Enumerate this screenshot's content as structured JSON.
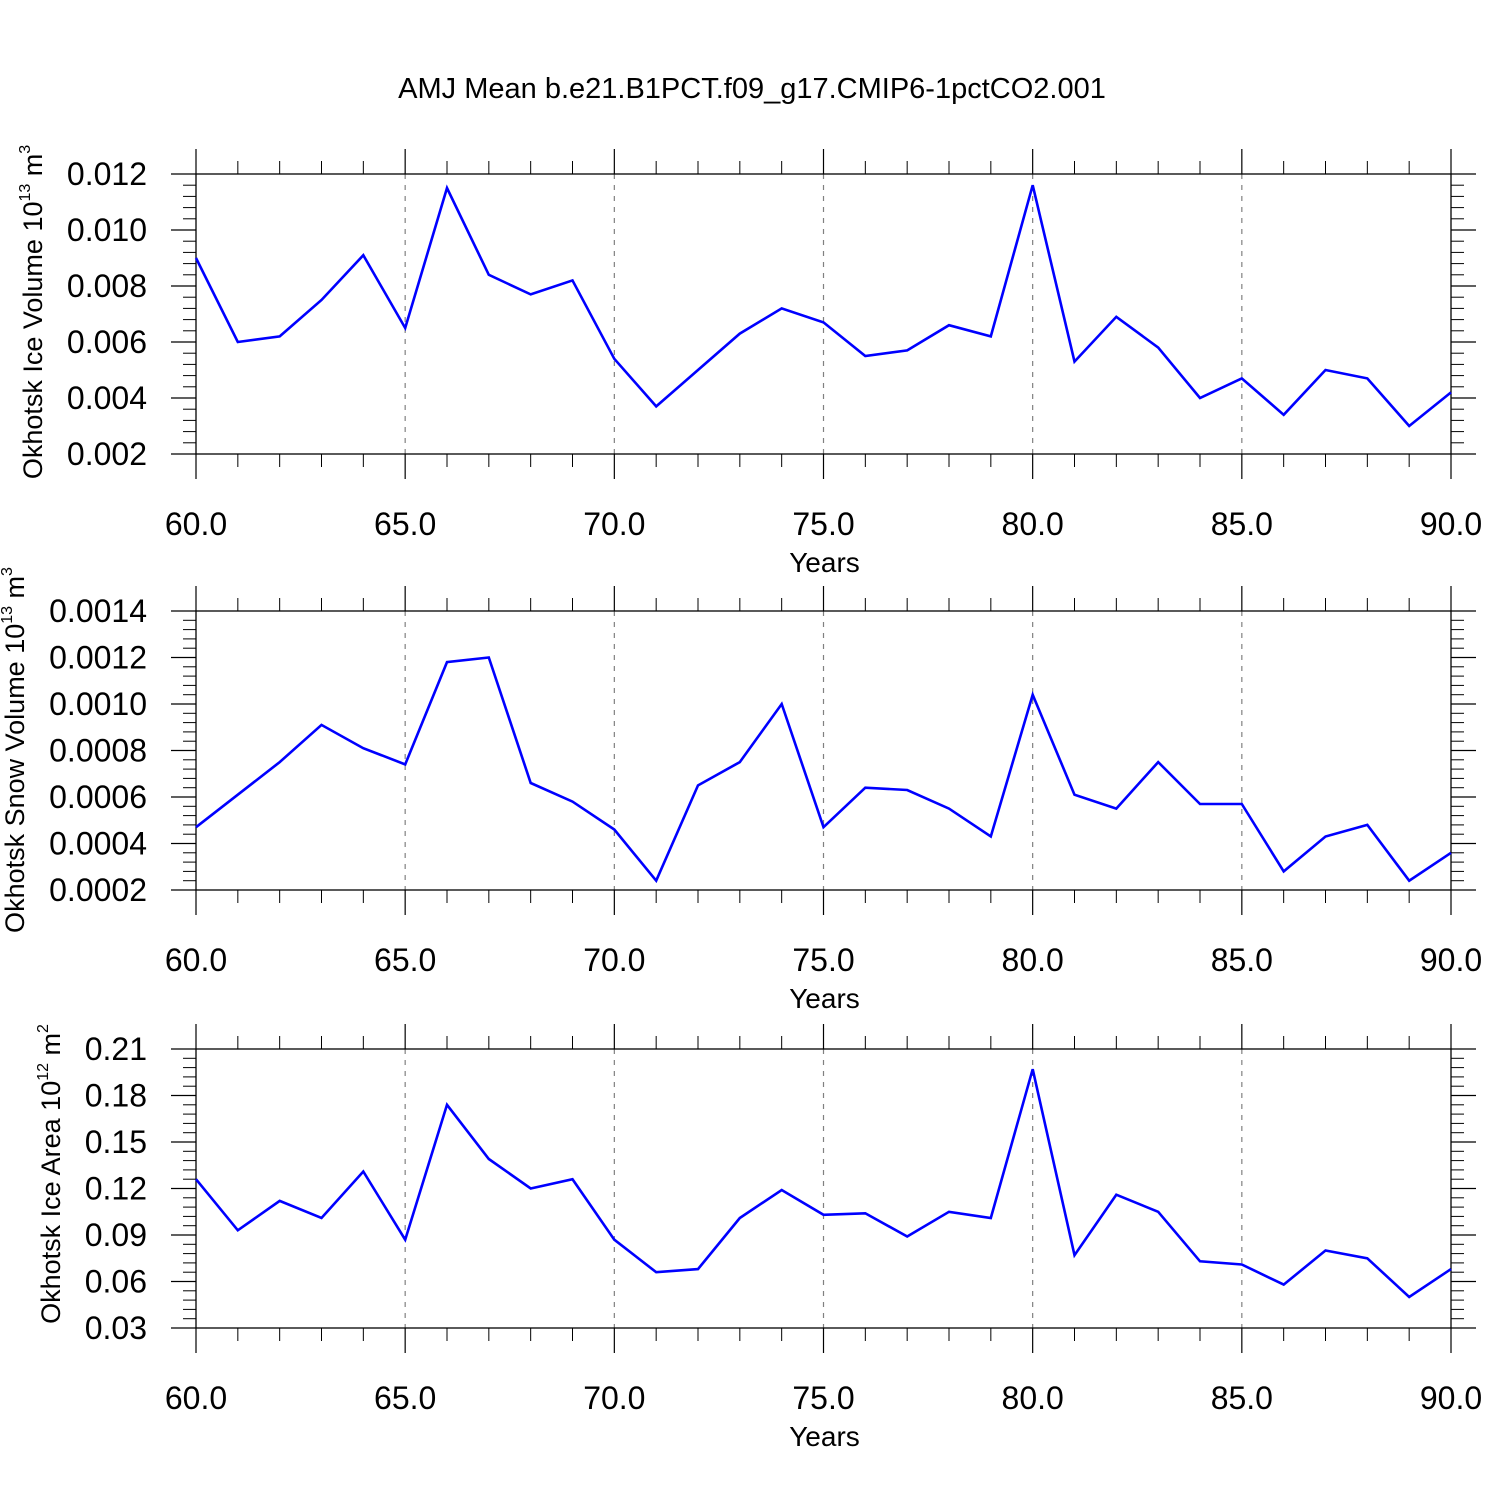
{
  "figure": {
    "title": "AMJ Mean b.e21.B1PCT.f09_g17.CMIP6-1pctCO2.001",
    "line_color": "#0000ff",
    "grid_color": "#808080"
  },
  "chart_data": [
    {
      "type": "line",
      "title": "AMJ Mean b.e21.B1PCT.f09_g17.CMIP6-1pctCO2.001",
      "xlabel": "Years",
      "ylabel": {
        "text": "Okhotsk Ice Volume 10",
        "exp": "13",
        "unit": " m",
        "unit_exp": "3"
      },
      "xlim": [
        60,
        90
      ],
      "ylim": [
        0.002,
        0.012
      ],
      "x_ticks": [
        60,
        65,
        70,
        75,
        80,
        85,
        90
      ],
      "x_tick_labels": [
        "60.0",
        "65.0",
        "70.0",
        "75.0",
        "80.0",
        "85.0",
        "90.0"
      ],
      "y_ticks": [
        0.002,
        0.004,
        0.006,
        0.008,
        0.01,
        0.012
      ],
      "y_tick_labels": [
        "0.002",
        "0.004",
        "0.006",
        "0.008",
        "0.010",
        "0.012"
      ],
      "grid": "vertical dashed at major x ticks",
      "series": [
        {
          "x": [
            60,
            61,
            62,
            63,
            64,
            65,
            66,
            67,
            68,
            69,
            70,
            71,
            72,
            73,
            74,
            75,
            76,
            77,
            78,
            79,
            80,
            81,
            82,
            83,
            84,
            85,
            86,
            87,
            88,
            89,
            90
          ],
          "values": [
            0.009,
            0.006,
            0.0062,
            0.0075,
            0.0091,
            0.0065,
            0.0115,
            0.0084,
            0.0077,
            0.0082,
            0.0054,
            0.0037,
            0.005,
            0.0063,
            0.0072,
            0.0067,
            0.0055,
            0.0057,
            0.0066,
            0.0062,
            0.0116,
            0.0053,
            0.0069,
            0.0058,
            0.004,
            0.0047,
            0.0034,
            0.005,
            0.0047,
            0.003,
            0.0042
          ]
        }
      ]
    },
    {
      "type": "line",
      "xlabel": "Years",
      "ylabel": {
        "text": "Okhotsk Snow Volume 10",
        "exp": "13",
        "unit": " m",
        "unit_exp": "3"
      },
      "xlim": [
        60,
        90
      ],
      "ylim": [
        0.0002,
        0.0014
      ],
      "x_ticks": [
        60,
        65,
        70,
        75,
        80,
        85,
        90
      ],
      "x_tick_labels": [
        "60.0",
        "65.0",
        "70.0",
        "75.0",
        "80.0",
        "85.0",
        "90.0"
      ],
      "y_ticks": [
        0.0002,
        0.0004,
        0.0006,
        0.0008,
        0.001,
        0.0012,
        0.0014
      ],
      "y_tick_labels": [
        "0.0002",
        "0.0004",
        "0.0006",
        "0.0008",
        "0.0010",
        "0.0012",
        "0.0014"
      ],
      "grid": "vertical dashed at major x ticks",
      "series": [
        {
          "x": [
            60,
            61,
            62,
            63,
            64,
            65,
            66,
            67,
            68,
            69,
            70,
            71,
            72,
            73,
            74,
            75,
            76,
            77,
            78,
            79,
            80,
            81,
            82,
            83,
            84,
            85,
            86,
            87,
            88,
            89,
            90
          ],
          "values": [
            0.00047,
            0.00061,
            0.00075,
            0.00091,
            0.00081,
            0.00074,
            0.00118,
            0.0012,
            0.00066,
            0.00058,
            0.00046,
            0.00024,
            0.00065,
            0.00075,
            0.001,
            0.00047,
            0.00064,
            0.00063,
            0.00055,
            0.00043,
            0.00104,
            0.00061,
            0.00055,
            0.00075,
            0.00057,
            0.00057,
            0.00028,
            0.00043,
            0.00048,
            0.00024,
            0.00036
          ]
        }
      ]
    },
    {
      "type": "line",
      "xlabel": "Years",
      "ylabel": {
        "text": "Okhotsk Ice Area 10",
        "exp": "12",
        "unit": " m",
        "unit_exp": "2"
      },
      "xlim": [
        60,
        90
      ],
      "ylim": [
        0.03,
        0.21
      ],
      "x_ticks": [
        60,
        65,
        70,
        75,
        80,
        85,
        90
      ],
      "x_tick_labels": [
        "60.0",
        "65.0",
        "70.0",
        "75.0",
        "80.0",
        "85.0",
        "90.0"
      ],
      "y_ticks": [
        0.03,
        0.06,
        0.09,
        0.12,
        0.15,
        0.18,
        0.21
      ],
      "y_tick_labels": [
        "0.03",
        "0.06",
        "0.09",
        "0.12",
        "0.15",
        "0.18",
        "0.21"
      ],
      "grid": "vertical dashed at major x ticks",
      "series": [
        {
          "x": [
            60,
            61,
            62,
            63,
            64,
            65,
            66,
            67,
            68,
            69,
            70,
            71,
            72,
            73,
            74,
            75,
            76,
            77,
            78,
            79,
            80,
            81,
            82,
            83,
            84,
            85,
            86,
            87,
            88,
            89,
            90
          ],
          "values": [
            0.126,
            0.093,
            0.112,
            0.101,
            0.131,
            0.087,
            0.174,
            0.139,
            0.12,
            0.126,
            0.087,
            0.066,
            0.068,
            0.101,
            0.119,
            0.103,
            0.104,
            0.089,
            0.105,
            0.101,
            0.197,
            0.077,
            0.116,
            0.105,
            0.073,
            0.071,
            0.058,
            0.08,
            0.075,
            0.05,
            0.068
          ]
        }
      ]
    }
  ]
}
